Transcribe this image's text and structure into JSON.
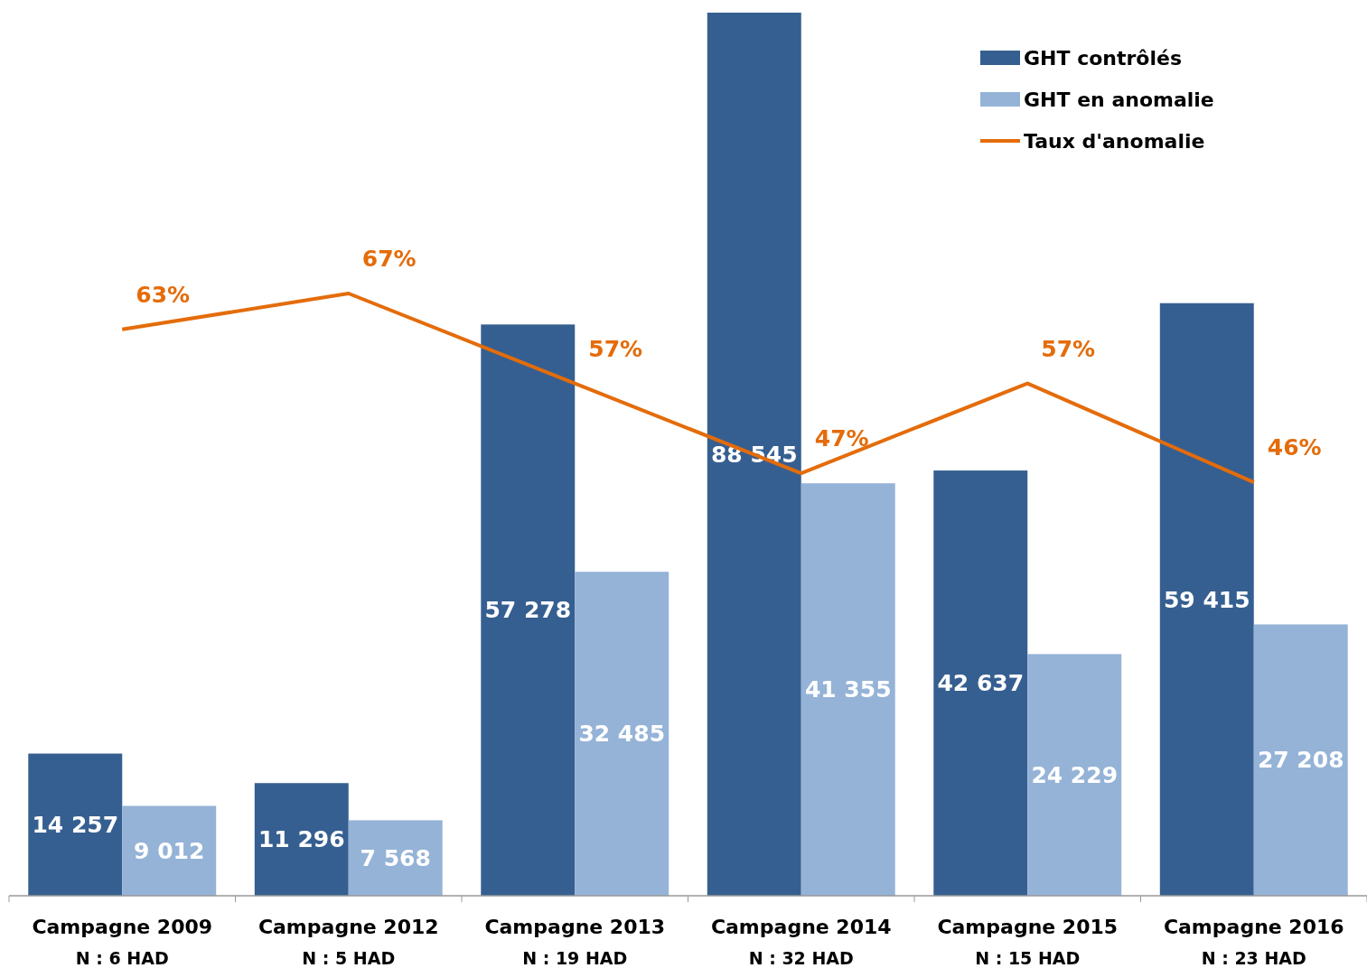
{
  "chart_data": {
    "type": "bar",
    "categories": [
      "Campagne 2009\nN : 6 HAD",
      "Campagne 2012\nN : 5 HAD",
      "Campagne 2013\nN : 19 HAD",
      "Campagne 2014\nN : 32 HAD",
      "Campagne 2015\nN : 15 HAD",
      "Campagne 2016\nN : 23 HAD"
    ],
    "series": [
      {
        "name": "GHT contrôlés",
        "color": "#365f91",
        "values": [
          14257,
          11296,
          57278,
          88545,
          42637,
          59415
        ]
      },
      {
        "name": "GHT en anomalie",
        "color": "#95b3d7",
        "values": [
          9012,
          7568,
          32485,
          41355,
          24229,
          27208
        ]
      },
      {
        "name": "Taux d'anomalie",
        "type": "line",
        "axis": "y2",
        "color": "#e46c0a",
        "values": [
          63,
          67,
          57,
          47,
          57,
          46
        ],
        "value_labels": [
          "63%",
          "67%",
          "57%",
          "47%",
          "57%",
          "46%"
        ]
      }
    ],
    "data_labels": true,
    "legend": "top right",
    "marker": "none",
    "line_style": "solid",
    "tick_labels": "x",
    "grid": false
  }
}
